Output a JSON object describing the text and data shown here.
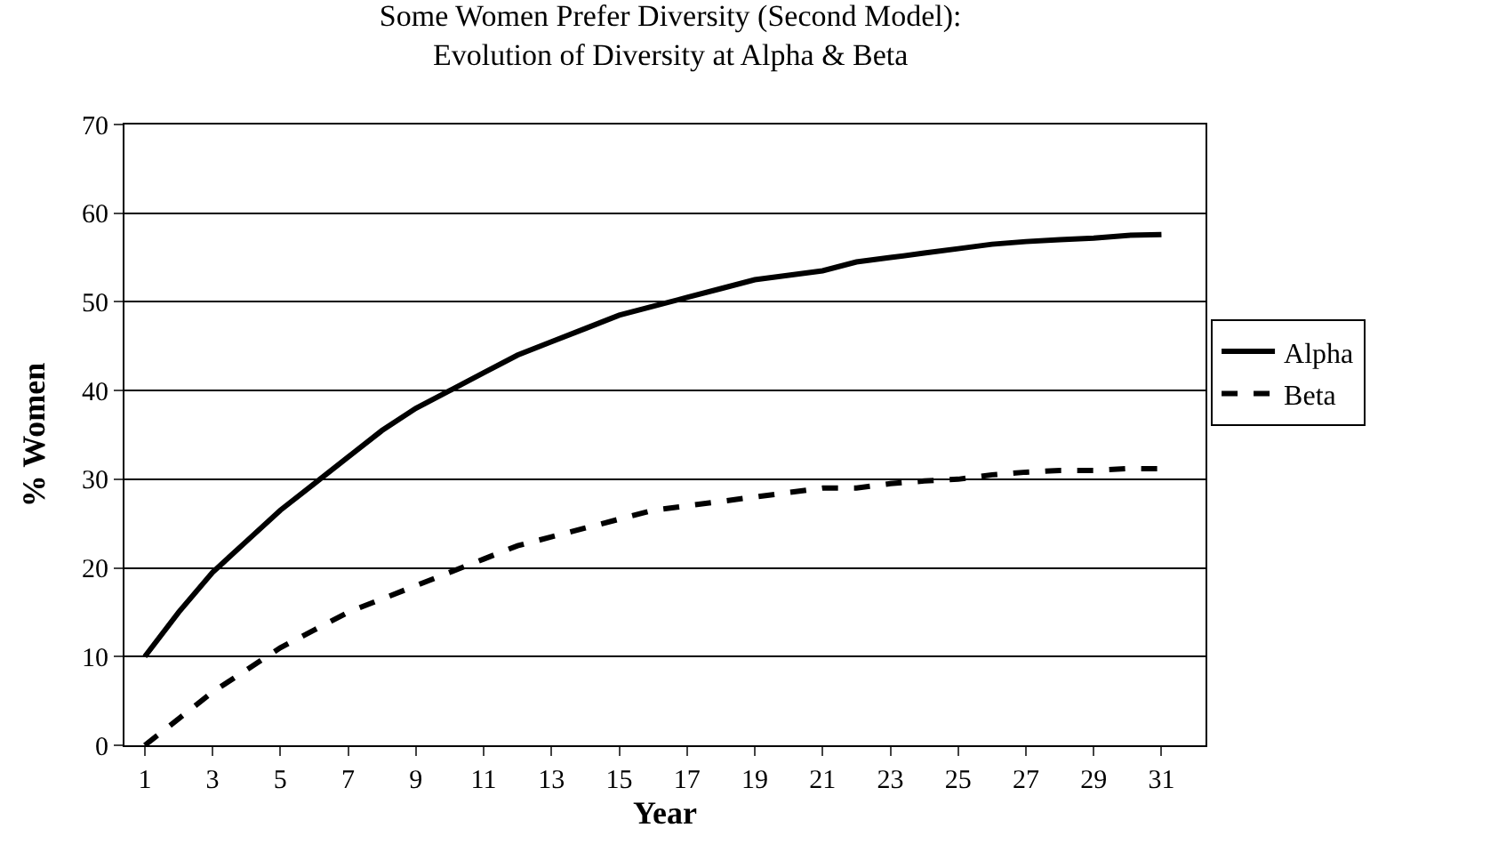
{
  "chart_data": {
    "type": "line",
    "title": "Some Women Prefer Diversity (Second Model):\nEvolution of Diversity at Alpha & Beta",
    "xlabel": "Year",
    "ylabel": "% Women",
    "x": [
      1,
      2,
      3,
      4,
      5,
      6,
      7,
      8,
      9,
      10,
      11,
      12,
      13,
      14,
      15,
      16,
      17,
      18,
      19,
      20,
      21,
      22,
      23,
      24,
      25,
      26,
      27,
      28,
      29,
      30,
      31
    ],
    "series": [
      {
        "name": "Alpha",
        "color": "#000000",
        "line_style": "solid",
        "values": [
          10,
          15,
          19.5,
          23,
          26.5,
          29.5,
          32.5,
          35.5,
          38,
          40,
          42,
          44,
          45.5,
          47,
          48.5,
          49.5,
          50.5,
          51.5,
          52.5,
          53,
          53.5,
          54.5,
          55,
          55.5,
          56,
          56.5,
          56.8,
          57,
          57.2,
          57.5,
          57.6
        ]
      },
      {
        "name": "Beta",
        "color": "#000000",
        "line_style": "dashed",
        "values": [
          0,
          3,
          6,
          8.5,
          11,
          13,
          15,
          16.5,
          18,
          19.5,
          21,
          22.5,
          23.5,
          24.5,
          25.5,
          26.5,
          27,
          27.5,
          28,
          28.5,
          29,
          29,
          29.5,
          29.8,
          30,
          30.5,
          30.8,
          31,
          31,
          31.2,
          31.2
        ]
      }
    ],
    "xlim": [
      0.4,
      32.3
    ],
    "xticks": [
      1,
      3,
      5,
      7,
      9,
      11,
      13,
      15,
      17,
      19,
      21,
      23,
      25,
      27,
      29,
      31
    ],
    "ylim": [
      0,
      70
    ],
    "yticks": [
      0,
      10,
      20,
      30,
      40,
      50,
      60,
      70
    ],
    "grid": "y",
    "legend": "right",
    "marker": "none"
  }
}
